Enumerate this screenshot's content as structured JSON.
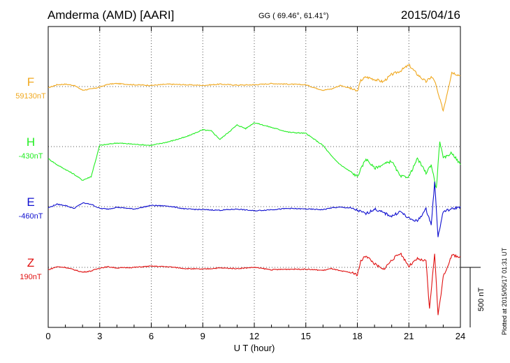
{
  "header": {
    "station": "Amderma (AMD)  [AARI]",
    "coords": "GG ( 69.46°,  61.41°)",
    "date": "2015/04/16"
  },
  "footer_note": "Plotted at 2015/05/17 01:31  UT",
  "scale_label": "500 nT",
  "chart_data": {
    "type": "line",
    "xlabel": "U T (hour)",
    "xlim": [
      0,
      24
    ],
    "xticks": [
      "0",
      "3",
      "6",
      "9",
      "12",
      "15",
      "18",
      "21",
      "24"
    ],
    "ylabel": "",
    "scale_bar_nT": 500,
    "colors": {
      "F": "#f0a81e",
      "H": "#22ee22",
      "E": "#1010d0",
      "Z": "#e01010"
    },
    "series": [
      {
        "name": "F",
        "baseline": "59130nT",
        "x": [
          0,
          0.5,
          1,
          1.5,
          2,
          2.5,
          3,
          3.5,
          4,
          5,
          6,
          7,
          8,
          9,
          10,
          11,
          12,
          13,
          14,
          15,
          15.5,
          16,
          16.5,
          17,
          17.5,
          18,
          18.2,
          18.5,
          19,
          19.5,
          20,
          20.5,
          21,
          21.5,
          22,
          22.3,
          22.5,
          22.7,
          23,
          23.5,
          24
        ],
        "values": [
          -10,
          15,
          20,
          10,
          -30,
          -20,
          -5,
          20,
          25,
          15,
          10,
          20,
          15,
          10,
          20,
          12,
          15,
          25,
          20,
          15,
          -10,
          -30,
          -20,
          10,
          -10,
          -40,
          50,
          80,
          60,
          40,
          100,
          130,
          180,
          100,
          40,
          80,
          50,
          -60,
          -200,
          120,
          90
        ]
      },
      {
        "name": "H",
        "baseline": "-430nT",
        "x": [
          0,
          0.5,
          1,
          1.5,
          2,
          2.5,
          3,
          3.5,
          4,
          5,
          6,
          7,
          8,
          9,
          9.5,
          10,
          10.5,
          11,
          11.5,
          12,
          13,
          14,
          15,
          16,
          16.5,
          17,
          17.5,
          18,
          18.5,
          19,
          19.5,
          20,
          20.5,
          21,
          21.5,
          22,
          22.3,
          22.6,
          22.8,
          23,
          23.5,
          24
        ],
        "values": [
          -100,
          -150,
          -190,
          -230,
          -280,
          -250,
          10,
          20,
          30,
          20,
          10,
          40,
          80,
          140,
          130,
          60,
          120,
          180,
          150,
          200,
          160,
          120,
          110,
          10,
          -80,
          -150,
          -200,
          -250,
          -100,
          -180,
          -150,
          -120,
          -250,
          -250,
          -100,
          -220,
          -150,
          -350,
          50,
          -100,
          -50,
          -150
        ]
      },
      {
        "name": "E",
        "baseline": "-460nT",
        "x": [
          0,
          0.5,
          1,
          1.5,
          2,
          2.5,
          3,
          3.5,
          4,
          5,
          6,
          7,
          8,
          9,
          10,
          11,
          12,
          13,
          14,
          15,
          16,
          16.5,
          17,
          17.5,
          18,
          18.5,
          19,
          19.5,
          20,
          20.5,
          21,
          21.5,
          22,
          22.3,
          22.5,
          22.7,
          23,
          23.5,
          24
        ],
        "values": [
          -10,
          20,
          10,
          -15,
          30,
          20,
          -15,
          -20,
          -5,
          -20,
          10,
          5,
          -20,
          -25,
          -30,
          -20,
          -35,
          -25,
          -15,
          -20,
          -25,
          -10,
          -5,
          -10,
          -30,
          -60,
          -20,
          -50,
          -80,
          -40,
          -100,
          -120,
          -20,
          -150,
          200,
          -250,
          -40,
          -20,
          0
        ]
      },
      {
        "name": "Z",
        "baseline": "190nT",
        "x": [
          0,
          0.5,
          1,
          1.5,
          2,
          2.5,
          3,
          3.5,
          4,
          5,
          6,
          7,
          8,
          9,
          10,
          11,
          12,
          13,
          14,
          15,
          16,
          16.5,
          17,
          17.5,
          18,
          18.2,
          18.5,
          19,
          19.5,
          20,
          20.5,
          21,
          21.5,
          22,
          22.2,
          22.5,
          22.7,
          23,
          23.5,
          24
        ],
        "values": [
          -20,
          5,
          0,
          -20,
          -40,
          -30,
          -5,
          5,
          -5,
          0,
          10,
          5,
          -10,
          -15,
          -5,
          -10,
          0,
          -20,
          -15,
          -15,
          -25,
          -10,
          -30,
          -40,
          -60,
          50,
          100,
          30,
          -20,
          60,
          120,
          10,
          70,
          50,
          -350,
          120,
          -400,
          -80,
          100,
          90
        ]
      }
    ]
  }
}
